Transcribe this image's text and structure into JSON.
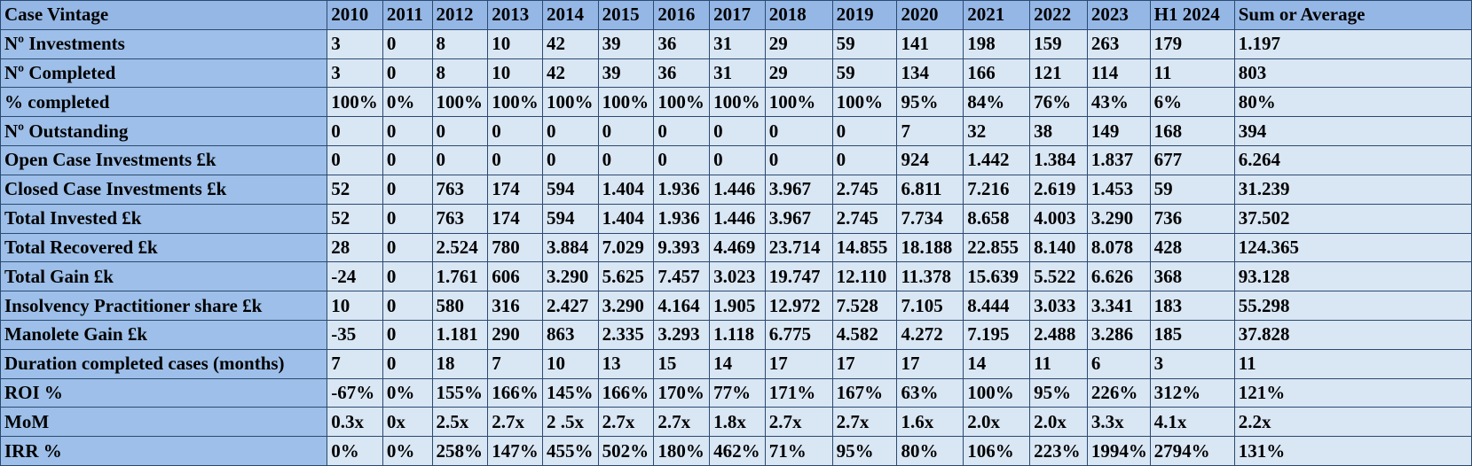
{
  "table": {
    "header_label": "Case Vintage",
    "columns": [
      "2010",
      "2011",
      "2012",
      "2013",
      "2014",
      "2015",
      "2016",
      "2017",
      "2018",
      "2019",
      "2020",
      "2021",
      "2022",
      "2023",
      "H1 2024",
      "Sum or Average"
    ],
    "rows": [
      {
        "label": "Nº Investments",
        "values": [
          "3",
          "0",
          "8",
          "10",
          "42",
          "39",
          "36",
          "31",
          "29",
          "59",
          "141",
          "198",
          "159",
          "263",
          "179",
          "1.197"
        ]
      },
      {
        "label": "Nº Completed",
        "values": [
          "3",
          "0",
          "8",
          "10",
          "42",
          "39",
          "36",
          "31",
          "29",
          "59",
          "134",
          "166",
          "121",
          "114",
          "11",
          "803"
        ]
      },
      {
        "label": "% completed",
        "values": [
          "100%",
          "0%",
          "100%",
          "100%",
          "100%",
          "100%",
          "100%",
          "100%",
          "100%",
          "100%",
          "95%",
          "84%",
          "76%",
          "43%",
          "6%",
          "80%"
        ]
      },
      {
        "label": "Nº Outstanding",
        "values": [
          "0",
          "0",
          "0",
          "0",
          "0",
          "0",
          "0",
          "0",
          "0",
          "0",
          "7",
          "32",
          "38",
          "149",
          "168",
          "394"
        ]
      },
      {
        "label": "Open Case Investments   £k",
        "values": [
          "0",
          "0",
          "0",
          "0",
          "0",
          "0",
          "0",
          "0",
          "0",
          "0",
          "924",
          "1.442",
          "1.384",
          "1.837",
          "677",
          "6.264"
        ]
      },
      {
        "label": "Closed  Case Investments   £k",
        "values": [
          "52",
          "0",
          "763",
          "174",
          "594",
          "1.404",
          "1.936",
          "1.446",
          "3.967",
          "2.745",
          "6.811",
          "7.216",
          "2.619",
          "1.453",
          "59",
          "31.239"
        ]
      },
      {
        "label": "Total Invested £k",
        "values": [
          "52",
          "0",
          "763",
          "174",
          "594",
          "1.404",
          "1.936",
          "1.446",
          "3.967",
          "2.745",
          "7.734",
          "8.658",
          "4.003",
          "3.290",
          "736",
          "37.502"
        ]
      },
      {
        "label": "Total Recovered £k",
        "values": [
          "28",
          "0",
          "2.524",
          "780",
          "3.884",
          "7.029",
          "9.393",
          "4.469",
          "23.714",
          "14.855",
          "18.188",
          "22.855",
          "8.140",
          "8.078",
          "428",
          "124.365"
        ]
      },
      {
        "label": "Total Gain £k",
        "values": [
          "-24",
          "0",
          "1.761",
          "606",
          "3.290",
          "5.625",
          "7.457",
          "3.023",
          "19.747",
          "12.110",
          "11.378",
          "15.639",
          "5.522",
          "6.626",
          "368",
          "93.128"
        ]
      },
      {
        "label": "Insolvency Practitioner share £k",
        "values": [
          "10",
          "0",
          "580",
          "316",
          "2.427",
          "3.290",
          "4.164",
          "1.905",
          "12.972",
          "7.528",
          "7.105",
          "8.444",
          "3.033",
          "3.341",
          "183",
          "55.298"
        ]
      },
      {
        "label": "Manolete Gain £k",
        "values": [
          "-35",
          "0",
          "1.181",
          "290",
          "863",
          "2.335",
          "3.293",
          "1.118",
          "6.775",
          "4.582",
          "4.272",
          "7.195",
          "2.488",
          "3.286",
          "185",
          "37.828"
        ]
      },
      {
        "label": "Duration completed cases (months)",
        "values": [
          "7",
          "0",
          "18",
          "7",
          "10",
          "13",
          "15",
          "14",
          "17",
          "17",
          "17",
          "14",
          "11",
          "6",
          "3",
          "11"
        ]
      },
      {
        "label": "ROI %",
        "values": [
          "-67%",
          "0%",
          "155%",
          "166%",
          "145%",
          "166%",
          "170%",
          "77%",
          "171%",
          "167%",
          "63%",
          "100%",
          "95%",
          "226%",
          "312%",
          "121%"
        ]
      },
      {
        "label": "MoM",
        "values": [
          "0.3x",
          "0x",
          "2.5x",
          "2.7x",
          "2 .5x",
          "2.7x",
          "2.7x",
          "1.8x",
          "2.7x",
          "2.7x",
          "1.6x",
          "2.0x",
          "2.0x",
          "3.3x",
          "4.1x",
          "2.2x"
        ]
      },
      {
        "label": "IRR %",
        "values": [
          "0%",
          "0%",
          "258%",
          "147%",
          "455%",
          "502%",
          "180%",
          "462%",
          "71%",
          "95%",
          "80%",
          "106%",
          "223%",
          "1994%",
          "2794%",
          "131%"
        ]
      }
    ]
  }
}
